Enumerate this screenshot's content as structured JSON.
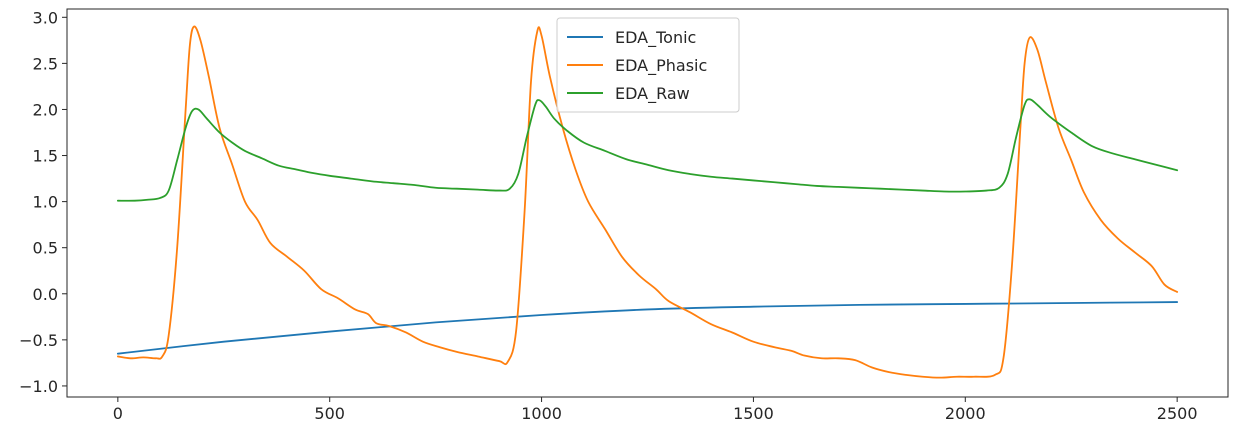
{
  "chart_data": {
    "type": "line",
    "title": "",
    "xlabel": "",
    "ylabel": "",
    "xlim": [
      -120,
      2620
    ],
    "ylim": [
      -1.12,
      3.09
    ],
    "x_ticks": [
      0,
      500,
      1000,
      1500,
      2000,
      2500
    ],
    "y_ticks": [
      -1.0,
      -0.5,
      0.0,
      0.5,
      1.0,
      1.5,
      2.0,
      2.5,
      3.0
    ],
    "x_tick_labels": [
      "0",
      "500",
      "1000",
      "1500",
      "2000",
      "2500"
    ],
    "y_tick_labels": [
      "−1.0",
      "−0.5",
      "0.0",
      "0.5",
      "1.0",
      "1.5",
      "2.0",
      "2.5",
      "3.0"
    ],
    "grid": false,
    "legend_placement": "upper-center",
    "series": [
      {
        "name": "EDA_Tonic",
        "color": "#1f77b4",
        "points": [
          [
            0,
            -0.65
          ],
          [
            250,
            -0.52
          ],
          [
            500,
            -0.41
          ],
          [
            750,
            -0.31
          ],
          [
            1000,
            -0.23
          ],
          [
            1250,
            -0.17
          ],
          [
            1500,
            -0.14
          ],
          [
            1750,
            -0.12
          ],
          [
            2000,
            -0.11
          ],
          [
            2250,
            -0.1
          ],
          [
            2500,
            -0.09
          ]
        ]
      },
      {
        "name": "EDA_Phasic",
        "color": "#ff7f0e",
        "points": [
          [
            0,
            -0.68
          ],
          [
            30,
            -0.7
          ],
          [
            60,
            -0.69
          ],
          [
            90,
            -0.7
          ],
          [
            105,
            -0.68
          ],
          [
            120,
            -0.45
          ],
          [
            140,
            0.5
          ],
          [
            160,
            2.0
          ],
          [
            170,
            2.7
          ],
          [
            180,
            2.9
          ],
          [
            195,
            2.75
          ],
          [
            215,
            2.35
          ],
          [
            240,
            1.8
          ],
          [
            270,
            1.4
          ],
          [
            300,
            1.0
          ],
          [
            330,
            0.8
          ],
          [
            360,
            0.55
          ],
          [
            400,
            0.4
          ],
          [
            440,
            0.25
          ],
          [
            480,
            0.05
          ],
          [
            520,
            -0.05
          ],
          [
            560,
            -0.17
          ],
          [
            590,
            -0.22
          ],
          [
            610,
            -0.32
          ],
          [
            640,
            -0.35
          ],
          [
            680,
            -0.42
          ],
          [
            720,
            -0.52
          ],
          [
            760,
            -0.58
          ],
          [
            800,
            -0.63
          ],
          [
            850,
            -0.68
          ],
          [
            900,
            -0.73
          ],
          [
            920,
            -0.74
          ],
          [
            940,
            -0.4
          ],
          [
            960,
            0.9
          ],
          [
            975,
            2.3
          ],
          [
            990,
            2.85
          ],
          [
            1000,
            2.8
          ],
          [
            1020,
            2.35
          ],
          [
            1050,
            1.8
          ],
          [
            1080,
            1.35
          ],
          [
            1110,
            1.0
          ],
          [
            1150,
            0.7
          ],
          [
            1190,
            0.4
          ],
          [
            1230,
            0.2
          ],
          [
            1270,
            0.05
          ],
          [
            1300,
            -0.08
          ],
          [
            1350,
            -0.2
          ],
          [
            1400,
            -0.33
          ],
          [
            1450,
            -0.42
          ],
          [
            1500,
            -0.52
          ],
          [
            1550,
            -0.58
          ],
          [
            1590,
            -0.62
          ],
          [
            1620,
            -0.67
          ],
          [
            1660,
            -0.7
          ],
          [
            1700,
            -0.7
          ],
          [
            1740,
            -0.72
          ],
          [
            1780,
            -0.8
          ],
          [
            1820,
            -0.85
          ],
          [
            1860,
            -0.88
          ],
          [
            1900,
            -0.9
          ],
          [
            1940,
            -0.91
          ],
          [
            1980,
            -0.9
          ],
          [
            2020,
            -0.9
          ],
          [
            2070,
            -0.88
          ],
          [
            2090,
            -0.7
          ],
          [
            2110,
            0.3
          ],
          [
            2130,
            1.8
          ],
          [
            2140,
            2.5
          ],
          [
            2152,
            2.78
          ],
          [
            2170,
            2.65
          ],
          [
            2190,
            2.3
          ],
          [
            2220,
            1.8
          ],
          [
            2250,
            1.45
          ],
          [
            2280,
            1.1
          ],
          [
            2320,
            0.8
          ],
          [
            2360,
            0.6
          ],
          [
            2400,
            0.45
          ],
          [
            2440,
            0.3
          ],
          [
            2470,
            0.1
          ],
          [
            2500,
            0.02
          ]
        ]
      },
      {
        "name": "EDA_Raw",
        "color": "#2ca02c",
        "points": [
          [
            0,
            1.01
          ],
          [
            40,
            1.01
          ],
          [
            70,
            1.02
          ],
          [
            100,
            1.04
          ],
          [
            120,
            1.12
          ],
          [
            140,
            1.45
          ],
          [
            160,
            1.8
          ],
          [
            175,
            1.98
          ],
          [
            190,
            2.0
          ],
          [
            210,
            1.9
          ],
          [
            240,
            1.75
          ],
          [
            270,
            1.64
          ],
          [
            300,
            1.55
          ],
          [
            340,
            1.47
          ],
          [
            380,
            1.39
          ],
          [
            420,
            1.35
          ],
          [
            460,
            1.31
          ],
          [
            500,
            1.28
          ],
          [
            550,
            1.25
          ],
          [
            600,
            1.22
          ],
          [
            650,
            1.2
          ],
          [
            700,
            1.18
          ],
          [
            750,
            1.15
          ],
          [
            800,
            1.14
          ],
          [
            850,
            1.13
          ],
          [
            900,
            1.12
          ],
          [
            925,
            1.14
          ],
          [
            945,
            1.3
          ],
          [
            965,
            1.7
          ],
          [
            985,
            2.05
          ],
          [
            995,
            2.1
          ],
          [
            1010,
            2.03
          ],
          [
            1030,
            1.9
          ],
          [
            1060,
            1.77
          ],
          [
            1100,
            1.64
          ],
          [
            1150,
            1.55
          ],
          [
            1200,
            1.46
          ],
          [
            1250,
            1.4
          ],
          [
            1300,
            1.34
          ],
          [
            1350,
            1.3
          ],
          [
            1400,
            1.27
          ],
          [
            1450,
            1.25
          ],
          [
            1500,
            1.23
          ],
          [
            1550,
            1.21
          ],
          [
            1600,
            1.19
          ],
          [
            1650,
            1.17
          ],
          [
            1700,
            1.16
          ],
          [
            1750,
            1.15
          ],
          [
            1800,
            1.14
          ],
          [
            1850,
            1.13
          ],
          [
            1900,
            1.12
          ],
          [
            1950,
            1.11
          ],
          [
            2000,
            1.11
          ],
          [
            2050,
            1.12
          ],
          [
            2080,
            1.15
          ],
          [
            2100,
            1.3
          ],
          [
            2120,
            1.7
          ],
          [
            2140,
            2.05
          ],
          [
            2152,
            2.11
          ],
          [
            2170,
            2.05
          ],
          [
            2200,
            1.92
          ],
          [
            2250,
            1.75
          ],
          [
            2300,
            1.6
          ],
          [
            2350,
            1.52
          ],
          [
            2400,
            1.46
          ],
          [
            2450,
            1.4
          ],
          [
            2500,
            1.34
          ]
        ]
      }
    ]
  }
}
